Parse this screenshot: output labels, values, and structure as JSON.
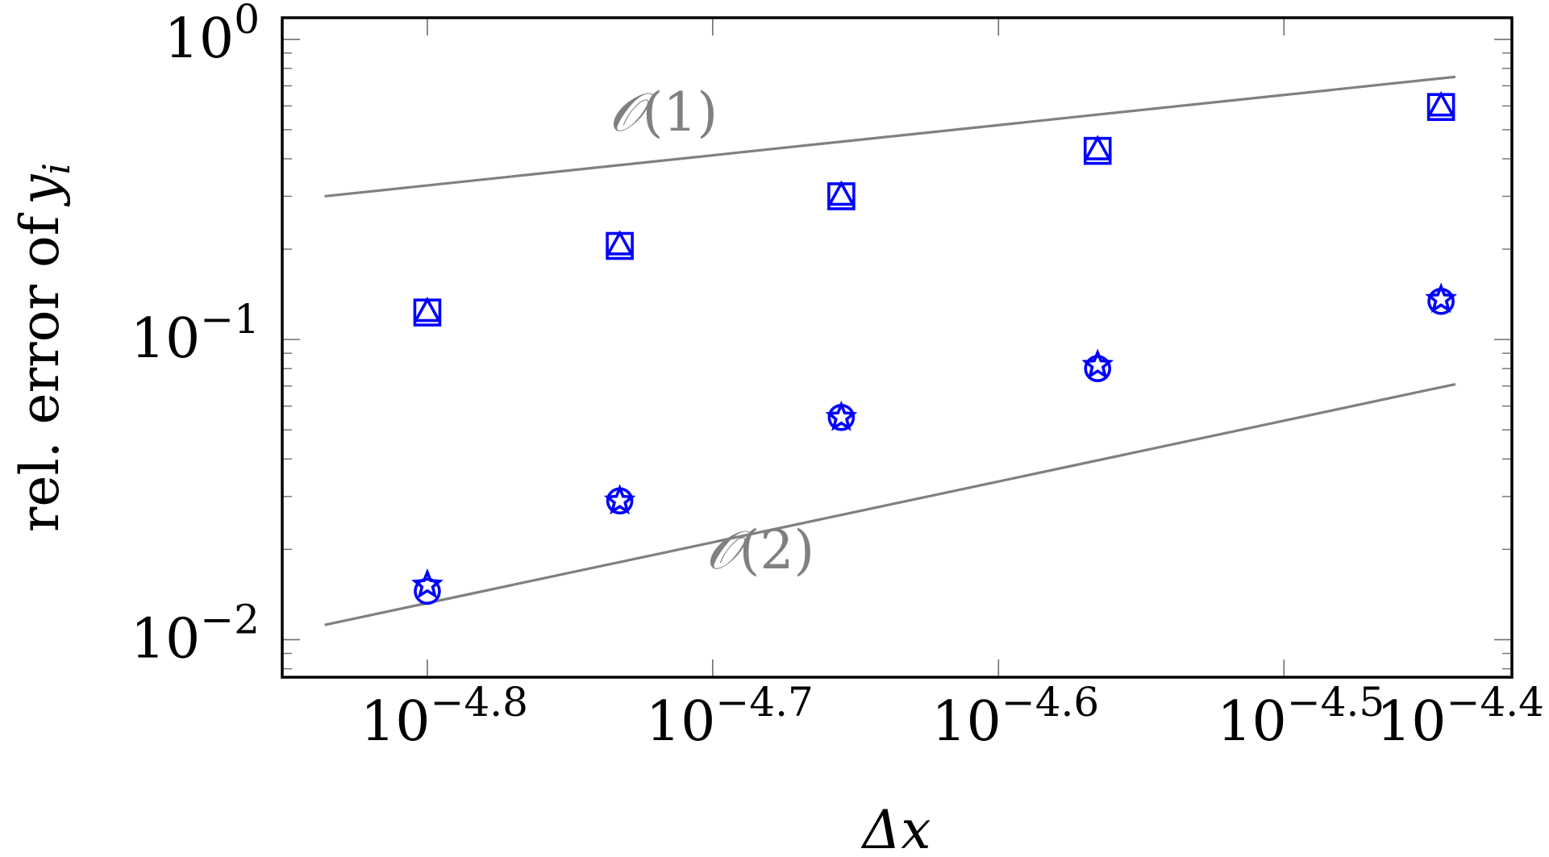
{
  "chart_data": {
    "type": "scatter",
    "xlabel": "Δx",
    "ylabel": "rel. error of",
    "ylabel_var": "y",
    "ylabel_sub": "i",
    "x_scale": "log",
    "y_scale": "log",
    "xlim": [
      1.41e-05,
      3.8e-05
    ],
    "ylim": [
      0.0075,
      1.18
    ],
    "grid": false,
    "x_ticks": [
      {
        "value": 1.585e-05,
        "base": "10",
        "exp": "−4.8"
      },
      {
        "value": 1.995e-05,
        "base": "10",
        "exp": "−4.7"
      },
      {
        "value": 2.512e-05,
        "base": "10",
        "exp": "−4.6"
      },
      {
        "value": 3.162e-05,
        "base": "10",
        "exp": "−4.5"
      },
      {
        "value": 3.981e-05,
        "base": "10",
        "exp": "−4.4"
      }
    ],
    "y_ticks": [
      {
        "value": 0.01,
        "base": "10",
        "exp": "−2"
      },
      {
        "value": 0.1,
        "base": "10",
        "exp": "−1"
      },
      {
        "value": 1,
        "base": "10",
        "exp": "0"
      }
    ],
    "x_minor_ticks": [],
    "y_minor_ticks": [
      0.008,
      0.009,
      0.02,
      0.03,
      0.04,
      0.05,
      0.06,
      0.07,
      0.08,
      0.09,
      0.2,
      0.3,
      0.4,
      0.5,
      0.6,
      0.7,
      0.8,
      0.9
    ],
    "series": [
      {
        "marker": "square",
        "color": "#0000ff",
        "x": [
          1.585e-05,
          1.851e-05,
          2.213e-05,
          2.721e-05,
          3.589e-05
        ],
        "y": [
          0.123,
          0.205,
          0.3,
          0.425,
          0.595
        ]
      },
      {
        "marker": "triangle",
        "color": "#0000ff",
        "x": [
          1.585e-05,
          1.851e-05,
          2.213e-05,
          2.721e-05,
          3.589e-05
        ],
        "y": [
          0.123,
          0.205,
          0.3,
          0.425,
          0.595
        ]
      },
      {
        "marker": "circle",
        "color": "#0000ff",
        "x": [
          1.585e-05,
          1.851e-05,
          2.213e-05,
          2.721e-05,
          3.589e-05
        ],
        "y": [
          0.0145,
          0.029,
          0.055,
          0.08,
          0.134
        ]
      },
      {
        "marker": "star",
        "color": "#0000ff",
        "x": [
          1.585e-05,
          1.851e-05,
          2.213e-05,
          2.721e-05,
          3.589e-05
        ],
        "y": [
          0.0152,
          0.029,
          0.055,
          0.082,
          0.136
        ]
      }
    ],
    "reference_lines": [
      {
        "label_prefix": "𝒪",
        "label_arg": "(1)",
        "color": "#808080",
        "x": [
          1.459e-05,
          3.631e-05
        ],
        "y": [
          0.3,
          0.75
        ]
      },
      {
        "label_prefix": "𝒪",
        "label_arg": "(2)",
        "color": "#808080",
        "x": [
          1.459e-05,
          3.631e-05
        ],
        "y": [
          0.0112,
          0.071
        ]
      }
    ],
    "colors": {
      "axis": "#000000",
      "markers": "#0000ff",
      "reference": "#808080"
    }
  }
}
